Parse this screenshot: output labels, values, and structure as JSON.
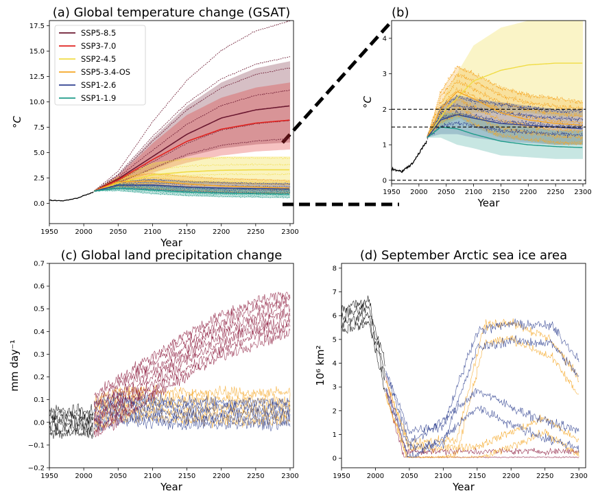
{
  "chart_data": [
    {
      "id": "a",
      "type": "line",
      "title": "(a) Global temperature change (GSAT)",
      "xlabel": "Year",
      "ylabel": "°C",
      "xlim": [
        1950,
        2305
      ],
      "ylim": [
        -2,
        18
      ],
      "xticks": [
        1950,
        2000,
        2050,
        2100,
        2150,
        2200,
        2250,
        2300
      ],
      "yticks": [
        0.0,
        2.5,
        5.0,
        7.5,
        10.0,
        12.5,
        15.0,
        17.5
      ],
      "yticklabels": [
        "0.0",
        "2.5",
        "5.0",
        "7.5",
        "10.0",
        "12.5",
        "15.0",
        "17.5"
      ],
      "legend_position": "top-left",
      "historical": {
        "x": [
          1950,
          1970,
          1990,
          2000,
          2014
        ],
        "y": [
          0.3,
          0.25,
          0.5,
          0.75,
          1.1
        ]
      },
      "series": [
        {
          "name": "SSP5-8.5",
          "color": "#6b1830",
          "x": [
            2015,
            2050,
            2100,
            2150,
            2200,
            2250,
            2300
          ],
          "mean_y": [
            1.2,
            2.4,
            4.6,
            6.8,
            8.4,
            9.2,
            9.6
          ],
          "band_lo": [
            1.2,
            2.0,
            3.3,
            4.6,
            5.4,
            5.8,
            6.0
          ],
          "band_hi": [
            1.2,
            2.8,
            6.4,
            9.6,
            11.9,
            13.3,
            14.0
          ]
        },
        {
          "name": "SSP3-7.0",
          "color": "#e0231f",
          "x": [
            2015,
            2050,
            2100,
            2150,
            2200,
            2250,
            2300
          ],
          "mean_y": [
            1.2,
            2.3,
            4.3,
            6.1,
            7.3,
            7.9,
            8.2
          ],
          "band_lo": [
            1.2,
            1.9,
            3.0,
            4.0,
            4.7,
            5.1,
            5.3
          ],
          "band_hi": [
            1.2,
            2.7,
            5.9,
            8.7,
            10.4,
            11.4,
            11.9
          ]
        },
        {
          "name": "SSP2-4.5",
          "color": "#f0dc44",
          "x": [
            2015,
            2050,
            2100,
            2150,
            2200,
            2250,
            2300
          ],
          "mean_y": [
            1.2,
            2.0,
            2.8,
            3.1,
            3.25,
            3.3,
            3.3
          ],
          "band_lo": [
            1.2,
            1.6,
            1.9,
            1.9,
            1.9,
            1.8,
            1.8
          ],
          "band_hi": [
            1.2,
            2.5,
            4.0,
            4.5,
            4.6,
            4.6,
            4.6
          ]
        },
        {
          "name": "SSP5-3.4-OS",
          "color": "#f5a623",
          "x": [
            2015,
            2050,
            2100,
            2150,
            2200,
            2250,
            2300
          ],
          "mean_y": [
            1.2,
            2.1,
            2.2,
            1.9,
            1.7,
            1.6,
            1.5
          ],
          "band_lo": [
            1.2,
            1.6,
            1.3,
            1.1,
            1.0,
            0.9,
            0.9
          ],
          "band_hi": [
            1.2,
            2.6,
            3.0,
            2.7,
            2.5,
            2.4,
            2.3
          ]
        },
        {
          "name": "SSP1-2.6",
          "color": "#2e3f8f",
          "x": [
            2015,
            2050,
            2100,
            2150,
            2200,
            2250,
            2300
          ],
          "mean_y": [
            1.2,
            1.8,
            1.8,
            1.6,
            1.5,
            1.45,
            1.4
          ],
          "band_lo": [
            1.2,
            1.4,
            1.3,
            1.1,
            1.0,
            0.95,
            0.9
          ],
          "band_hi": [
            1.2,
            2.2,
            2.4,
            2.2,
            2.1,
            2.0,
            2.0
          ]
        },
        {
          "name": "SSP1-1.9",
          "color": "#1f9c8a",
          "x": [
            2015,
            2050,
            2100,
            2150,
            2200,
            2250,
            2300
          ],
          "mean_y": [
            1.2,
            1.5,
            1.3,
            1.1,
            1.0,
            0.95,
            0.9
          ],
          "band_lo": [
            1.2,
            1.2,
            0.9,
            0.7,
            0.6,
            0.55,
            0.5
          ],
          "band_hi": [
            1.2,
            1.9,
            1.8,
            1.6,
            1.5,
            1.45,
            1.4
          ]
        }
      ]
    },
    {
      "id": "b",
      "type": "line",
      "title": "(b)",
      "xlabel": "Year",
      "ylabel": "°C",
      "xlim": [
        1950,
        2305
      ],
      "ylim": [
        -0.1,
        4.5
      ],
      "xticks": [
        1950,
        2000,
        2050,
        2100,
        2150,
        2200,
        2250,
        2300
      ],
      "yticks": [
        0,
        1,
        2,
        3,
        4
      ],
      "reference_lines": [
        0,
        1.5,
        2.0
      ],
      "historical": {
        "x": [
          1950,
          1970,
          1990,
          2000,
          2014
        ],
        "y": [
          0.3,
          0.25,
          0.5,
          0.75,
          1.1
        ]
      },
      "series": [
        {
          "name": "SSP2-4.5",
          "color": "#f0dc44",
          "x": [
            2015,
            2050,
            2100,
            2150,
            2200,
            2250,
            2300
          ],
          "mean_y": [
            1.2,
            2.0,
            2.8,
            3.1,
            3.25,
            3.3,
            3.3
          ],
          "band_lo": [
            1.2,
            1.6,
            1.9,
            1.9,
            1.9,
            1.8,
            1.8
          ],
          "band_hi": [
            1.2,
            2.5,
            3.8,
            4.3,
            4.5,
            4.5,
            4.5
          ]
        },
        {
          "name": "SSP5-3.4-OS",
          "color": "#f5a623",
          "x": [
            2015,
            2040,
            2070,
            2100,
            2150,
            2200,
            2250,
            2300
          ],
          "mean_y": [
            1.2,
            2.0,
            2.5,
            2.3,
            1.9,
            1.7,
            1.6,
            1.55
          ],
          "band_lo": [
            1.2,
            1.6,
            1.8,
            1.5,
            1.2,
            1.1,
            1.0,
            1.0
          ],
          "band_hi": [
            1.2,
            2.5,
            3.2,
            3.0,
            2.6,
            2.4,
            2.3,
            2.2
          ]
        },
        {
          "name": "SSP1-2.6",
          "color": "#2e3f8f",
          "x": [
            2015,
            2040,
            2070,
            2100,
            2150,
            2200,
            2250,
            2300
          ],
          "mean_y": [
            1.2,
            1.7,
            1.85,
            1.75,
            1.6,
            1.55,
            1.5,
            1.45
          ],
          "band_lo": [
            1.2,
            1.3,
            1.3,
            1.2,
            1.1,
            1.05,
            1.0,
            1.0
          ],
          "band_hi": [
            1.2,
            2.1,
            2.4,
            2.3,
            2.2,
            2.1,
            2.0,
            2.0
          ]
        },
        {
          "name": "SSP1-1.9",
          "color": "#1f9c8a",
          "x": [
            2015,
            2040,
            2070,
            2100,
            2150,
            2200,
            2250,
            2300
          ],
          "mean_y": [
            1.2,
            1.5,
            1.45,
            1.3,
            1.1,
            1.0,
            0.95,
            0.92
          ],
          "band_lo": [
            1.2,
            1.2,
            1.0,
            0.9,
            0.7,
            0.65,
            0.6,
            0.6
          ],
          "band_hi": [
            1.2,
            1.9,
            1.9,
            1.8,
            1.6,
            1.5,
            1.4,
            1.4
          ]
        }
      ]
    },
    {
      "id": "c",
      "type": "line",
      "title": "(c) Global land precipitation change",
      "xlabel": "Year",
      "ylabel": "mm day⁻¹",
      "xlim": [
        1950,
        2305
      ],
      "ylim": [
        -0.2,
        0.7
      ],
      "xticks": [
        1950,
        2000,
        2050,
        2100,
        2150,
        2200,
        2250,
        2300
      ],
      "yticks": [
        -0.2,
        -0.1,
        0.0,
        0.1,
        0.2,
        0.3,
        0.4,
        0.5,
        0.6,
        0.7
      ],
      "yticklabels": [
        "−0.2",
        "−0.1",
        "0.0",
        "0.1",
        "0.2",
        "0.3",
        "0.4",
        "0.5",
        "0.6",
        "0.7"
      ],
      "series": [
        {
          "name": "historical",
          "color": "#000000",
          "x": [
            1950,
            2014
          ],
          "mean_y": [
            0.0,
            0.0
          ],
          "spread": 0.05
        },
        {
          "name": "SSP5-8.5",
          "color": "#8a1538",
          "x": [
            2015,
            2050,
            2100,
            2150,
            2200,
            2250,
            2300
          ],
          "mean_y": [
            0.03,
            0.1,
            0.2,
            0.3,
            0.38,
            0.44,
            0.48
          ],
          "spread": 0.09
        },
        {
          "name": "SSP5-3.4-OS",
          "color": "#f5a623",
          "x": [
            2015,
            2050,
            2100,
            2150,
            2200,
            2250,
            2300
          ],
          "mean_y": [
            0.03,
            0.08,
            0.08,
            0.07,
            0.07,
            0.07,
            0.07
          ],
          "spread": 0.06
        },
        {
          "name": "SSP1-2.6",
          "color": "#2e3f8f",
          "x": [
            2015,
            2050,
            2100,
            2150,
            2200,
            2250,
            2300
          ],
          "mean_y": [
            0.03,
            0.06,
            0.05,
            0.04,
            0.04,
            0.04,
            0.04
          ],
          "spread": 0.05
        }
      ]
    },
    {
      "id": "d",
      "type": "line",
      "title": "(d) September Arctic sea ice area",
      "xlabel": "Year",
      "ylabel": "10⁶ km²",
      "xlim": [
        1950,
        2310
      ],
      "ylim": [
        -0.4,
        8.2
      ],
      "xticks": [
        1950,
        2000,
        2050,
        2100,
        2150,
        2200,
        2250,
        2300
      ],
      "yticks": [
        0,
        1,
        2,
        3,
        4,
        5,
        6,
        7,
        8
      ],
      "series": [
        {
          "name": "historical",
          "color": "#000000",
          "x": [
            1950,
            1990,
            2000,
            2014
          ],
          "mean_y": [
            5.8,
            6.2,
            5.0,
            3.5
          ],
          "spread": 0.8
        },
        {
          "name": "SSP5-8.5",
          "color": "#8a1538",
          "x": [
            2015,
            2030,
            2045,
            2300
          ],
          "mean_y": [
            3.2,
            1.5,
            0.05,
            0.05
          ],
          "spread": 0.4
        },
        {
          "name": "SSP5-3.4-OS",
          "color": "#f5a623",
          "x": [
            2015,
            2050,
            2120,
            2160,
            2200,
            2260,
            2300
          ],
          "mean_y": [
            3.0,
            0.2,
            0.5,
            5.2,
            5.4,
            4.6,
            3.0
          ],
          "spread": 0.6
        },
        {
          "name": "SSP5-3.4-OS",
          "color": "#f5a623",
          "x": [
            2015,
            2050,
            2150,
            2200,
            2250,
            2300
          ],
          "mean_y": [
            3.0,
            0.1,
            0.2,
            0.8,
            1.4,
            0.4
          ],
          "spread": 0.5
        },
        {
          "name": "SSP1-2.6",
          "color": "#2e3f8f",
          "x": [
            2015,
            2050,
            2100,
            2150,
            2200,
            2260,
            2300
          ],
          "mean_y": [
            3.3,
            0.8,
            1.0,
            5.0,
            5.3,
            5.2,
            3.8
          ],
          "spread": 0.6
        },
        {
          "name": "SSP1-2.6",
          "color": "#2e3f8f",
          "x": [
            2015,
            2050,
            2100,
            2150,
            2200,
            2250,
            2300
          ],
          "mean_y": [
            3.3,
            0.3,
            1.2,
            2.5,
            1.8,
            1.2,
            0.8
          ],
          "spread": 0.6
        }
      ]
    }
  ]
}
